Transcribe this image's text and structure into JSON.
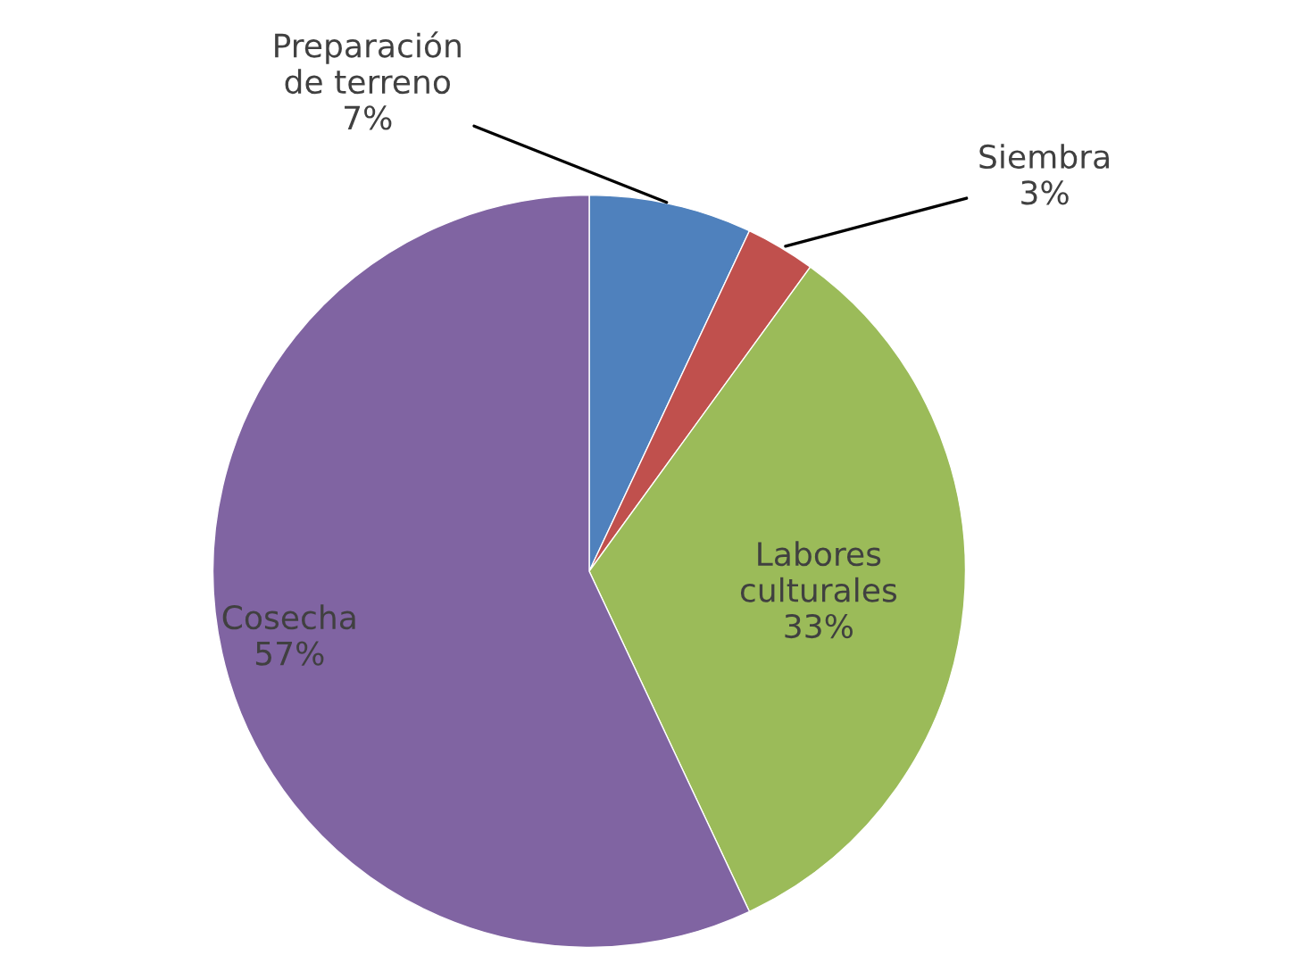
{
  "chart_data": {
    "type": "pie",
    "categories": [
      "Preparación de terreno",
      "Siembra",
      "Labores culturales",
      "Cosecha"
    ],
    "values": [
      7,
      3,
      33,
      57
    ],
    "colors": [
      "#4f81bd",
      "#c0504d",
      "#9bbb59",
      "#8064a2"
    ],
    "value_labels": [
      "7%",
      "3%",
      "33%",
      "57%"
    ],
    "legend": false
  }
}
